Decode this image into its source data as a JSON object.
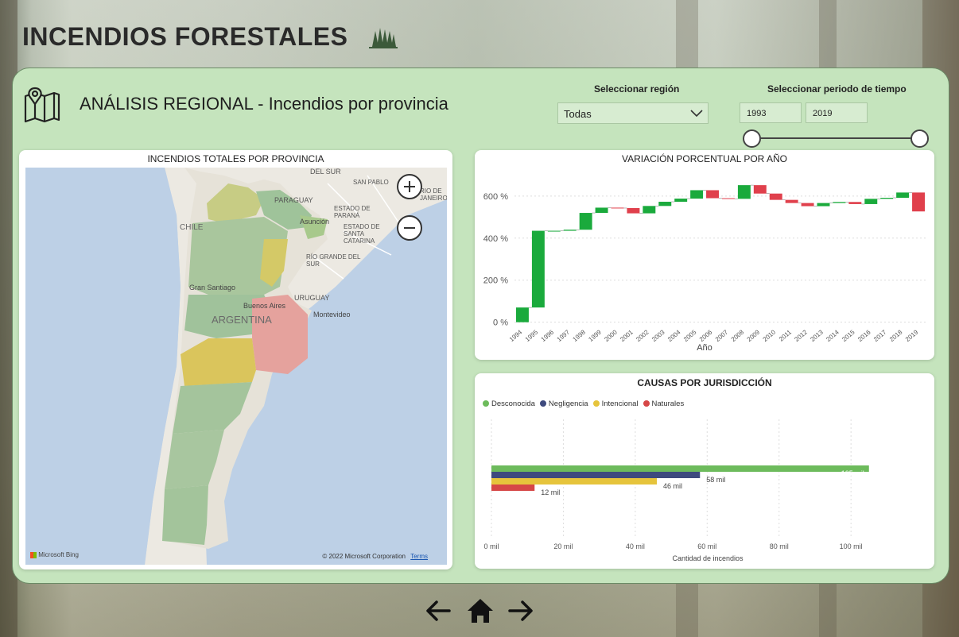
{
  "header": {
    "title": "INCENDIOS FORESTALES"
  },
  "section": {
    "subtitle": "ANÁLISIS REGIONAL - Incendios por provincia"
  },
  "filters": {
    "region_label": "Seleccionar región",
    "region_value": "Todas",
    "period_label": "Seleccionar periodo de tiempo",
    "start_year": "1993",
    "end_year": "2019"
  },
  "map_card": {
    "title": "INCENDIOS TOTALES POR PROVINCIA",
    "labels": [
      "DEL SUR",
      "PARAGUAY",
      "SAN PABLO",
      "RIO DE JANEIRO",
      "ESTADO DE PARANÁ",
      "Asunción",
      "ESTADO DE SANTA CATARINA",
      "CHILE",
      "RÍO GRANDE DEL SUR",
      "Gran Santiago",
      "Buenos Aires",
      "URUGUAY",
      "ARGENTINA",
      "Montevideo"
    ],
    "bing": "Microsoft Bing",
    "copyright": "© 2022 Microsoft Corporation",
    "terms": "Terms",
    "colors": {
      "low": "#9fc39a",
      "mid": "#d9c95a",
      "high": "#e39a95",
      "sea": "#bdd0e6",
      "land": "#ece9e2"
    }
  },
  "chart_data": [
    {
      "type": "waterfall",
      "title": "VARIACIÓN PORCENTUAL POR AÑO",
      "xlabel": "Año",
      "ylabel": "",
      "y_ticks": [
        "0 %",
        "200 %",
        "400 %",
        "600 %"
      ],
      "ylim": [
        -5,
        660
      ],
      "categories": [
        "1994",
        "1995",
        "1996",
        "1997",
        "1998",
        "1999",
        "2000",
        "2001",
        "2002",
        "2003",
        "2004",
        "2005",
        "2006",
        "2007",
        "2008",
        "2009",
        "2010",
        "2011",
        "2012",
        "2013",
        "2014",
        "2015",
        "2016",
        "2017",
        "2018",
        "2019"
      ],
      "changes": [
        70,
        365,
        0,
        5,
        80,
        25,
        -2,
        -25,
        35,
        20,
        15,
        40,
        -38,
        -3,
        65,
        -40,
        -30,
        -15,
        -15,
        15,
        5,
        -10,
        25,
        5,
        25,
        -90
      ],
      "increase_color": "#1aaa3c",
      "decrease_color": "#e0404c"
    },
    {
      "type": "bar",
      "orientation": "horizontal",
      "title": "CAUSAS POR JURISDICCIÓN",
      "xlabel": "Cantidad de incendios",
      "x_ticks": [
        "0 mil",
        "20 mil",
        "40 mil",
        "60 mil",
        "80 mil",
        "100 mil"
      ],
      "xlim": [
        0,
        115
      ],
      "series": [
        {
          "name": "Desconocida",
          "value": 105,
          "label": "105 mil",
          "color": "#6dbb5c"
        },
        {
          "name": "Negligencia",
          "value": 58,
          "label": "58 mil",
          "color": "#3e4a7e"
        },
        {
          "name": "Intencional",
          "value": 46,
          "label": "46 mil",
          "color": "#e6c43c"
        },
        {
          "name": "Naturales",
          "value": 12,
          "label": "12 mil",
          "color": "#d64747"
        }
      ]
    }
  ]
}
